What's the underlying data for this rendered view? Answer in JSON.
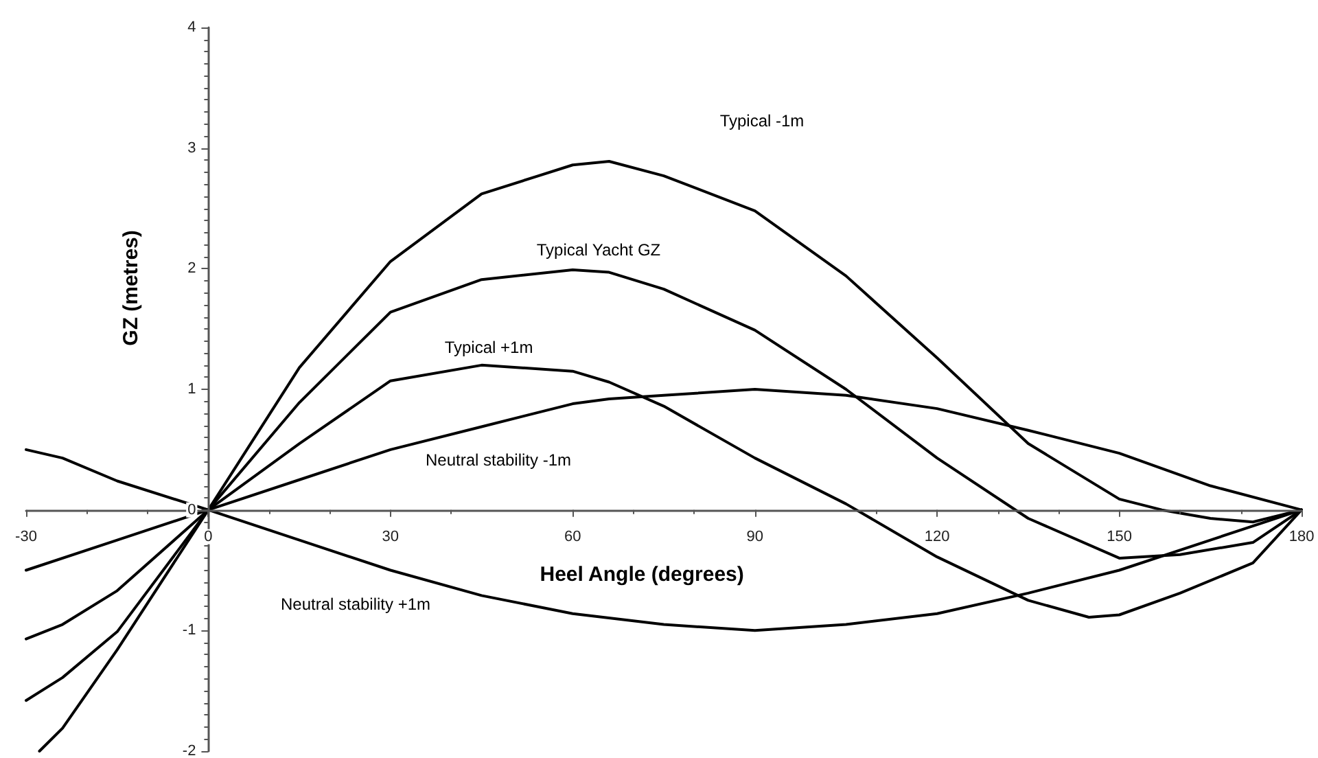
{
  "chart_data": {
    "type": "line",
    "xlabel": "Heel Angle (degrees)",
    "ylabel": "GZ (metres)",
    "xlim": [
      -30,
      180
    ],
    "xticks": [
      -30,
      0,
      30,
      60,
      90,
      120,
      150,
      180
    ],
    "ylim": [
      -2,
      4
    ],
    "yticks": [
      -2,
      -1,
      0,
      1,
      2,
      3,
      4
    ],
    "marker": "none",
    "line_style": "solid",
    "series": [
      {
        "color": "#000000",
        "x": [
          -27.8,
          -24,
          -15,
          0,
          15,
          30,
          45,
          60,
          66,
          75,
          90,
          105,
          120,
          135,
          150,
          157,
          165,
          172,
          180
        ],
        "values": [
          -2.0,
          -1.81,
          -1.16,
          0,
          1.18,
          2.06,
          2.62,
          2.86,
          2.89,
          2.77,
          2.48,
          1.94,
          1.26,
          0.55,
          0.09,
          0,
          -0.07,
          -0.1,
          0
        ]
      },
      {
        "color": "#000000",
        "x": [
          -30,
          -24,
          -15,
          0,
          15,
          30,
          45,
          60,
          66,
          75,
          90,
          105,
          120,
          135,
          150,
          160,
          172,
          180
        ],
        "values": [
          -1.58,
          -1.39,
          -1.01,
          0,
          0.89,
          1.64,
          1.91,
          1.99,
          1.97,
          1.83,
          1.49,
          1.0,
          0.43,
          -0.07,
          -0.4,
          -0.37,
          -0.27,
          0
        ]
      },
      {
        "color": "#000000",
        "x": [
          -30,
          -24,
          -15,
          0,
          15,
          30,
          45,
          60,
          66,
          75,
          90,
          105,
          120,
          135,
          145,
          150,
          160,
          172,
          180
        ],
        "values": [
          -1.07,
          -0.95,
          -0.67,
          0,
          0.55,
          1.07,
          1.2,
          1.15,
          1.06,
          0.86,
          0.43,
          0.05,
          -0.39,
          -0.75,
          -0.89,
          -0.87,
          -0.69,
          -0.44,
          0
        ]
      },
      {
        "color": "#000000",
        "x": [
          -30,
          -15,
          0,
          15,
          30,
          45,
          60,
          66,
          75,
          90,
          105,
          120,
          135,
          150,
          165,
          180
        ],
        "values": [
          -0.5,
          -0.25,
          0,
          0.25,
          0.5,
          0.69,
          0.88,
          0.92,
          0.95,
          1.0,
          0.95,
          0.84,
          0.66,
          0.47,
          0.2,
          0
        ]
      },
      {
        "color": "#000000",
        "x": [
          -30,
          -24,
          -15,
          0,
          15,
          30,
          45,
          60,
          75,
          90,
          105,
          120,
          135,
          150,
          165,
          180
        ],
        "values": [
          0.5,
          0.43,
          0.24,
          0,
          -0.25,
          -0.5,
          -0.71,
          -0.86,
          -0.95,
          -1.0,
          -0.95,
          -0.86,
          -0.69,
          -0.5,
          -0.25,
          0
        ]
      }
    ],
    "annotations": [
      "Typical -1m",
      "Typical Yacht GZ",
      "Typical +1m",
      "Neutral stability -1m",
      "Neutral stability +1m"
    ]
  }
}
